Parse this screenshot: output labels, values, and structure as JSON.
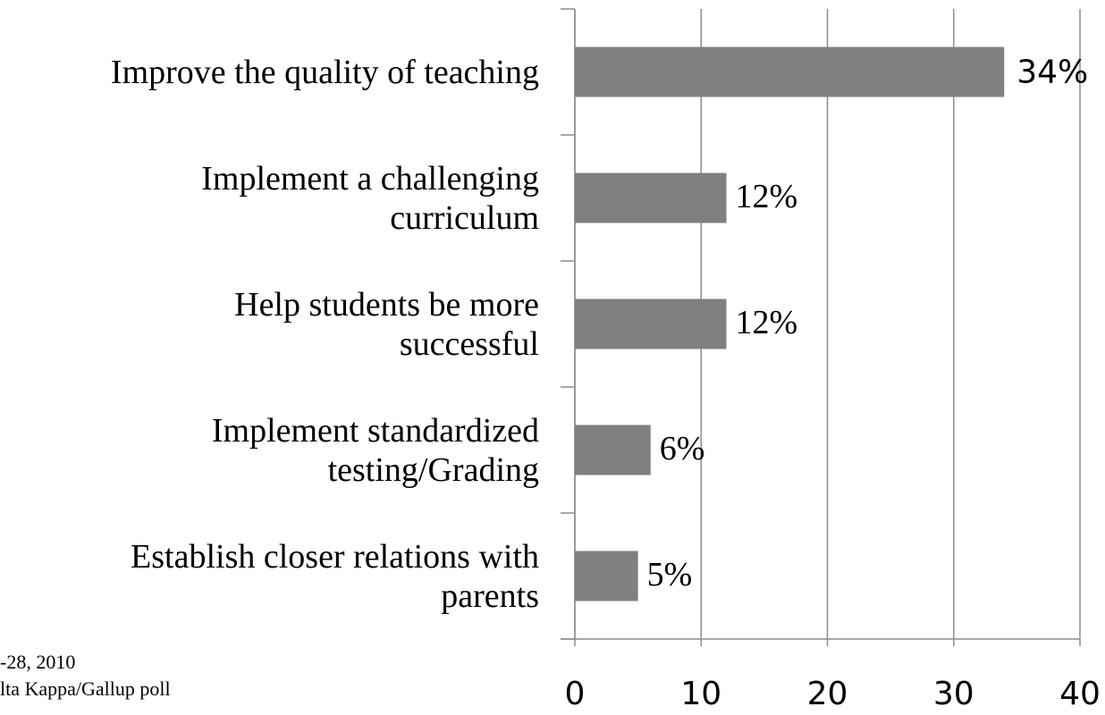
{
  "chart_data": {
    "type": "bar",
    "orientation": "horizontal",
    "categories": [
      "Improve the quality of teaching",
      "Implement a challenging\ncurriculum",
      "Help students be more\nsuccessful",
      "Implement standardized\ntesting/Grading",
      "Establish closer relations with\nparents"
    ],
    "values": [
      34,
      12,
      12,
      6,
      5
    ],
    "value_labels": [
      "34%",
      "12%",
      "12%",
      "6%",
      "5%"
    ],
    "color": "#808080",
    "xlim": [
      0,
      40
    ],
    "xticks": [
      0,
      10,
      20,
      30,
      40
    ],
    "grid": true,
    "footnotes": [
      "-28, 2010",
      "lta Kappa/Gallup poll"
    ]
  }
}
